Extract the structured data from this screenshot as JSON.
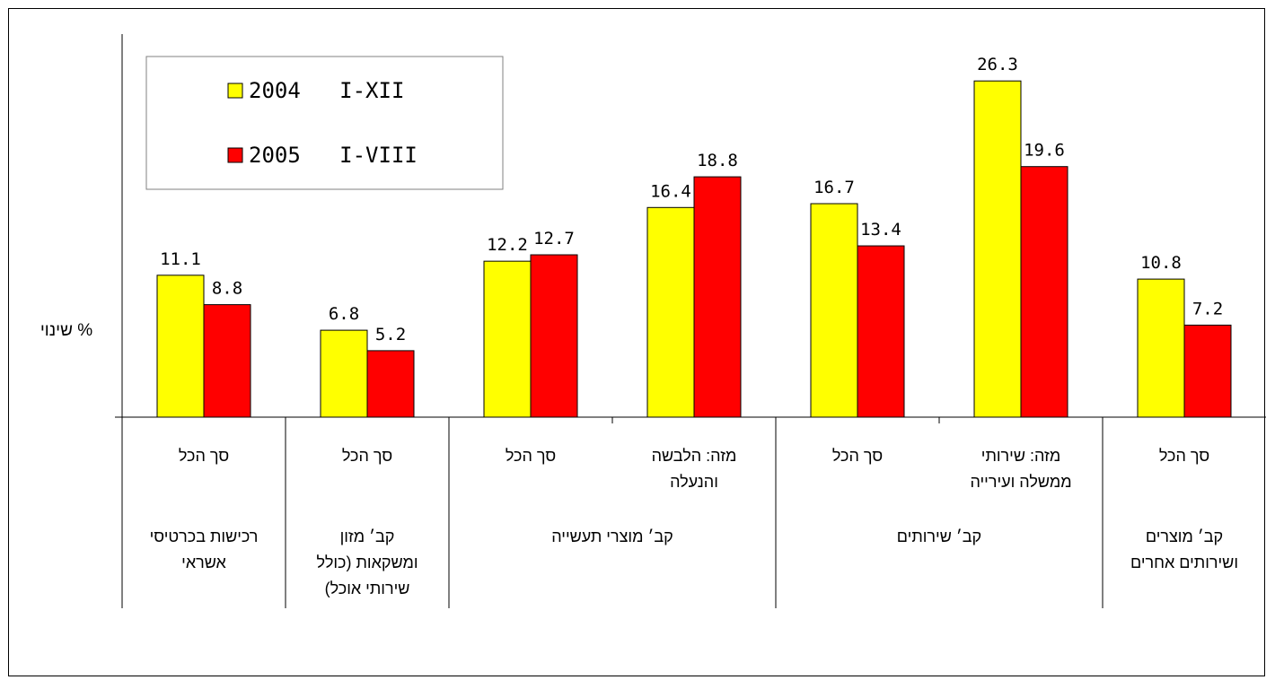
{
  "chart_data": {
    "type": "bar",
    "ylabel": "% שינוי",
    "ylim": [
      0,
      28
    ],
    "grid": false,
    "legend_position": "top-left",
    "series": [
      {
        "name": "2004   I-XII",
        "color": "#ffff00",
        "values": [
          11.1,
          6.8,
          12.2,
          16.4,
          16.7,
          26.3,
          10.8
        ]
      },
      {
        "name": "2005   I-VIII",
        "color": "#ff0000",
        "values": [
          8.8,
          5.2,
          12.7,
          18.8,
          13.4,
          19.6,
          7.2
        ]
      }
    ],
    "categories": [
      "סך הכל",
      "סך הכל",
      "סך הכל",
      "מזה: הלבשה והנעלה",
      "סך הכל",
      "מזה: שירותי ממשלה ועירייה",
      "סך הכל"
    ],
    "category_lines": [
      [
        "סך הכל"
      ],
      [
        "סך הכל"
      ],
      [
        "סך הכל"
      ],
      [
        "מזה: הלבשה",
        "והנעלה"
      ],
      [
        "סך הכל"
      ],
      [
        "מזה: שירותי",
        "ממשלה ועירייה"
      ],
      [
        "סך הכל"
      ]
    ],
    "groups": [
      {
        "label_lines": [
          "רכישות בכרטיסי",
          "אשראי"
        ],
        "span": [
          0,
          0
        ]
      },
      {
        "label_lines": [
          "קב׳ מזון",
          "ומשקאות (כולל",
          "שירותי אוכל)"
        ],
        "span": [
          1,
          1
        ]
      },
      {
        "label_lines": [
          "קב׳ מוצרי תעשייה"
        ],
        "span": [
          2,
          3
        ]
      },
      {
        "label_lines": [
          "קב׳ שירותים"
        ],
        "span": [
          4,
          5
        ]
      },
      {
        "label_lines": [
          "קב׳ מוצרים",
          "ושירותים אחרים"
        ],
        "span": [
          6,
          6
        ]
      }
    ]
  }
}
